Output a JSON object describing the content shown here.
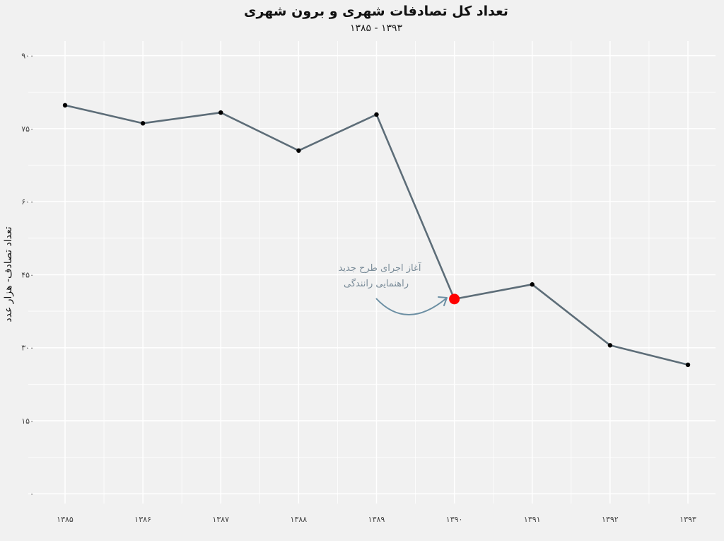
{
  "chart_data": {
    "type": "line",
    "title": "تعداد کل تصادفات شهری و برون شهری",
    "subtitle": "۱۳۸۵ - ۱۳۹۳",
    "xlabel": "",
    "ylabel": "تعداد تصادف- هزار عدد",
    "categories": [
      "۱۳۸۵",
      "۱۳۸۶",
      "۱۳۸۷",
      "۱۳۸۸",
      "۱۳۸۹",
      "۱۳۹۰",
      "۱۳۹۱",
      "۱۳۹۲",
      "۱۳۹۳"
    ],
    "values": [
      798,
      761,
      783,
      705,
      779,
      400,
      430,
      305,
      265
    ],
    "yticks": [
      0,
      150,
      300,
      450,
      600,
      750,
      900
    ],
    "ytick_labels": [
      "۰",
      "۱۵۰",
      "۳۰۰",
      "۴۵۰",
      "۶۰۰",
      "۷۵۰",
      "۹۰۰"
    ],
    "ylim": [
      -20,
      930
    ],
    "grid": true,
    "highlight_index": 5,
    "annotation": {
      "lines": [
        "آغاز اجرای طرح جدید",
        "راهنمایی رانندگی"
      ]
    },
    "colors": {
      "line": "#5d6d78",
      "point": "#000000",
      "highlight": "#ff0000",
      "annotation": "#7a8c99",
      "arrow": "#6c8fa3",
      "background": "#f1f1f1",
      "grid": "#ffffff"
    }
  }
}
